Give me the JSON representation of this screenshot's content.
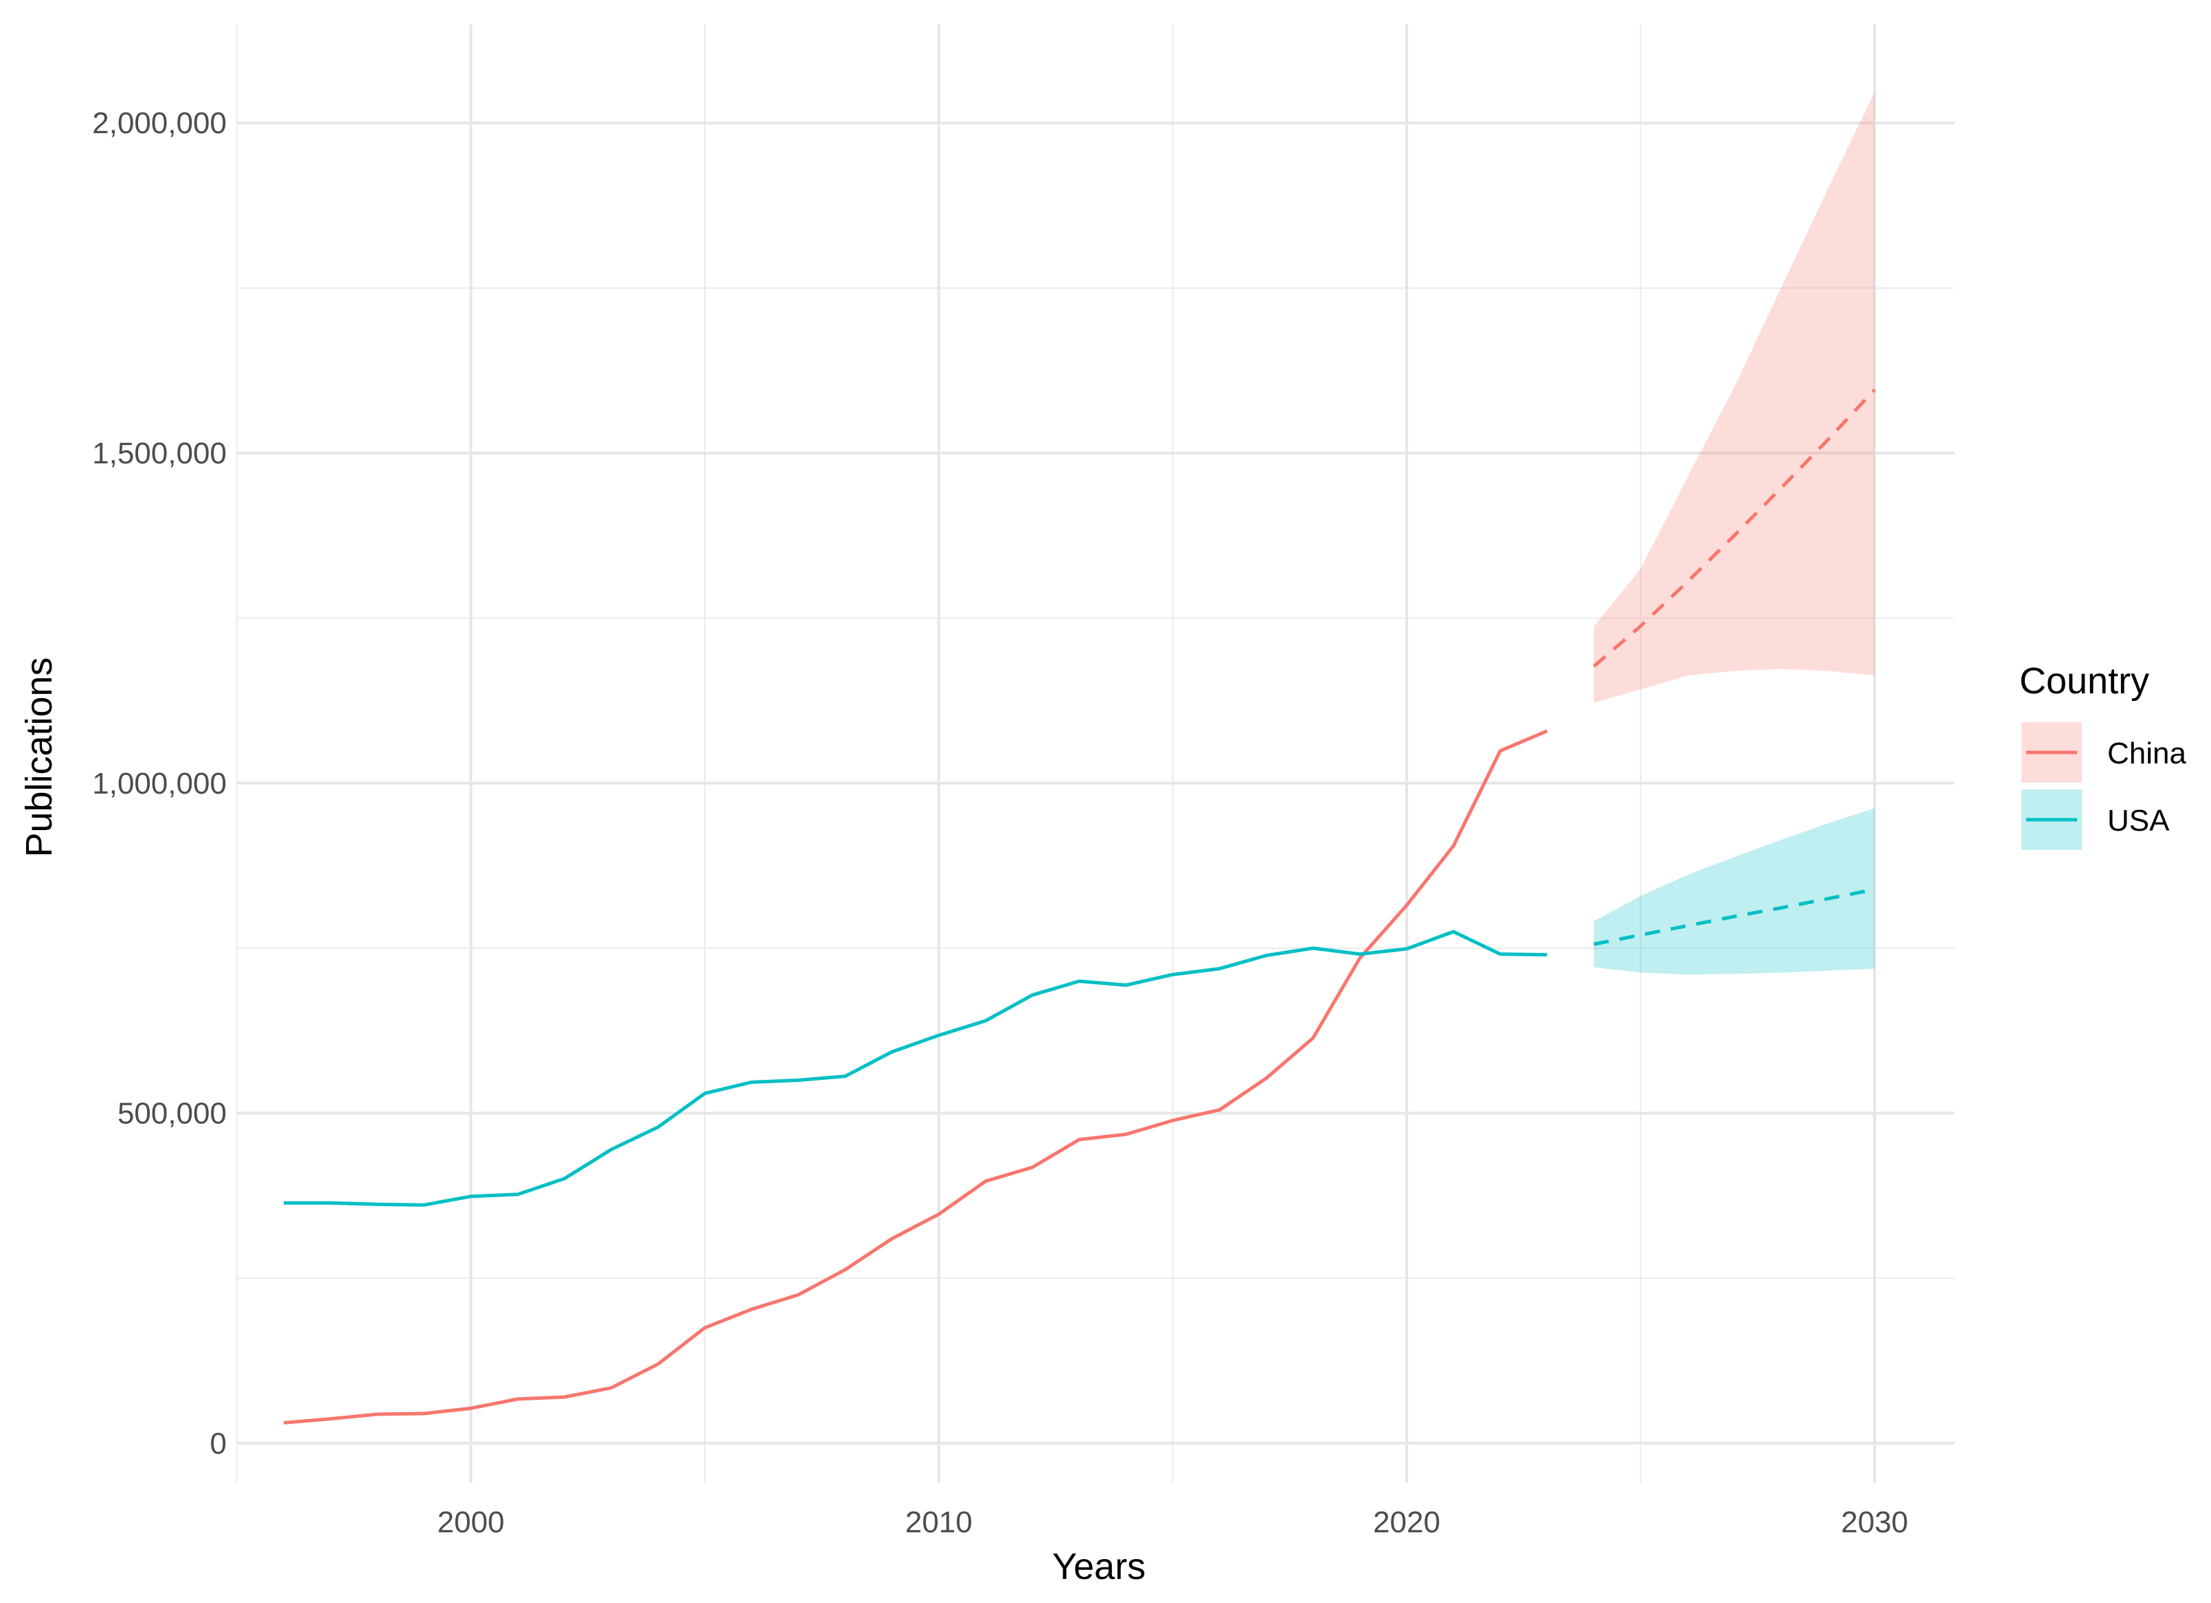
{
  "chart_data": {
    "type": "line",
    "title": "",
    "xlabel": "Years",
    "ylabel": "Publications",
    "xlim": [
      1995,
      2031.7
    ],
    "ylim": [
      -60000,
      2150000
    ],
    "x_ticks": [
      2000,
      2010,
      2020,
      2030
    ],
    "x_tick_labels": [
      "2000",
      "2010",
      "2020",
      "2030"
    ],
    "x_minor_ticks": [
      1995,
      2005,
      2015,
      2025
    ],
    "y_ticks": [
      0,
      500000,
      1000000,
      1500000,
      2000000
    ],
    "y_tick_labels": [
      "0",
      "500,000",
      "1,000,000",
      "1,500,000",
      "2,000,000"
    ],
    "y_minor_ticks": [
      250000,
      750000,
      1250000,
      1750000
    ],
    "grid": true,
    "legend": {
      "title": "Country",
      "position": "right",
      "entries": [
        "China",
        "USA"
      ]
    },
    "series": [
      {
        "name": "China",
        "color": "#F8766D",
        "historical": {
          "x": [
            1996,
            1997,
            1998,
            1999,
            2000,
            2001,
            2002,
            2003,
            2004,
            2005,
            2006,
            2007,
            2008,
            2009,
            2010,
            2011,
            2012,
            2013,
            2014,
            2015,
            2016,
            2017,
            2018,
            2019,
            2020,
            2021,
            2022,
            2023
          ],
          "y": [
            31000,
            37000,
            44000,
            45000,
            53000,
            67000,
            70000,
            84000,
            120000,
            175000,
            203000,
            225000,
            263000,
            310000,
            347000,
            397000,
            418000,
            460000,
            468000,
            489000,
            505000,
            553000,
            614000,
            735000,
            815000,
            905000,
            1049000,
            1079000
          ]
        },
        "forecast": {
          "x": [
            2024,
            2025,
            2026,
            2027,
            2028,
            2029,
            2030
          ],
          "y": [
            1177000,
            1238000,
            1305000,
            1375000,
            1447000,
            1520000,
            1596000
          ]
        },
        "interval": {
          "x": [
            2024,
            2025,
            2026,
            2027,
            2028,
            2029,
            2030
          ],
          "lower": [
            1122000,
            1142000,
            1163000,
            1170000,
            1173000,
            1170000,
            1163000
          ],
          "upper": [
            1237000,
            1325000,
            1463000,
            1600000,
            1750000,
            1900000,
            2047000
          ]
        }
      },
      {
        "name": "USA",
        "color": "#00BFC4",
        "historical": {
          "x": [
            1996,
            1997,
            1998,
            1999,
            2000,
            2001,
            2002,
            2003,
            2004,
            2005,
            2006,
            2007,
            2008,
            2009,
            2010,
            2011,
            2012,
            2013,
            2014,
            2015,
            2016,
            2017,
            2018,
            2019,
            2020,
            2021,
            2022,
            2023
          ],
          "y": [
            364000,
            364000,
            362000,
            361000,
            374000,
            377000,
            401000,
            445000,
            479000,
            530000,
            547000,
            550000,
            556000,
            593000,
            618000,
            640000,
            679000,
            700000,
            694000,
            710000,
            719000,
            739000,
            750000,
            741000,
            749000,
            775000,
            741000,
            740000
          ]
        },
        "forecast": {
          "x": [
            2024,
            2025,
            2026,
            2027,
            2028,
            2029,
            2030
          ],
          "y": [
            756000,
            770000,
            784000,
            798000,
            811000,
            825000,
            839000
          ]
        },
        "interval": {
          "x": [
            2024,
            2025,
            2026,
            2027,
            2028,
            2029,
            2030
          ],
          "lower": [
            721000,
            713000,
            710000,
            711000,
            713000,
            716000,
            719000
          ],
          "upper": [
            791000,
            829000,
            861000,
            888000,
            914000,
            939000,
            962000
          ]
        }
      }
    ]
  }
}
